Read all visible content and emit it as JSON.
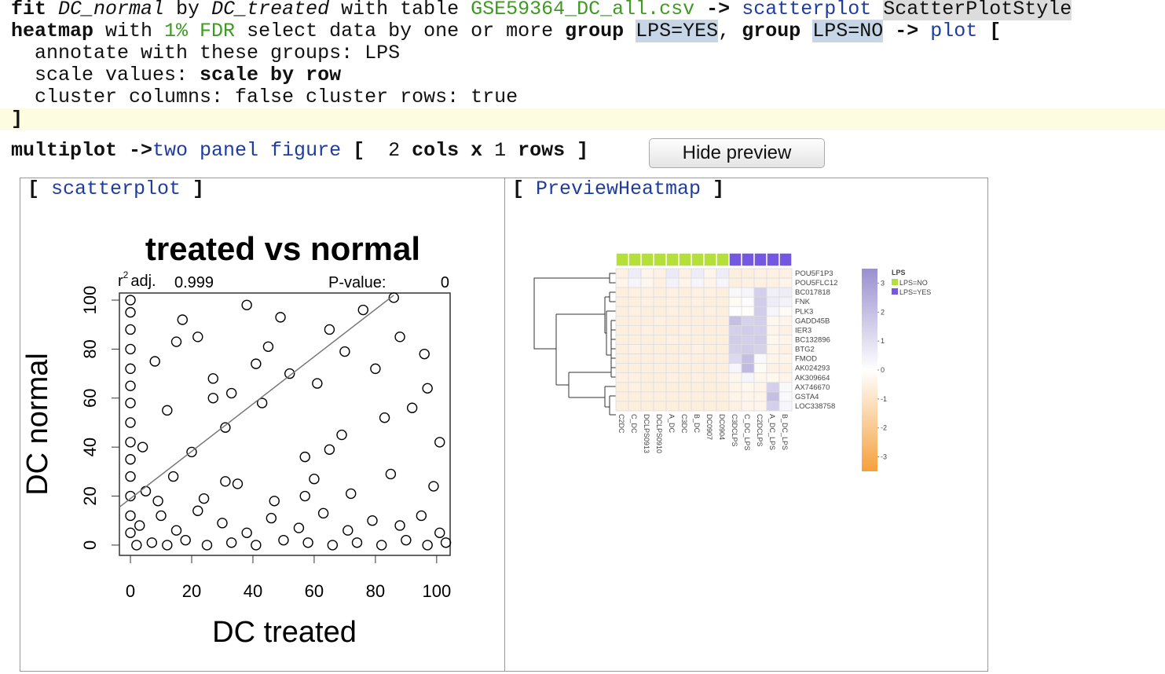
{
  "editor": {
    "lines": [
      {
        "tokens": [
          {
            "text": "fit ",
            "style": "kw"
          },
          {
            "text": "DC_normal",
            "style": "it"
          },
          {
            "text": " by ",
            "style": "plain"
          },
          {
            "text": "DC_treated",
            "style": "it"
          },
          {
            "text": " with table ",
            "style": "plain"
          },
          {
            "text": "GSE59364_DC_all.csv",
            "style": "str"
          },
          {
            "text": " -> ",
            "style": "kw"
          },
          {
            "text": "scatterplot ",
            "style": "ref"
          },
          {
            "text": "ScatterPlotStyle",
            "style": "hl"
          }
        ]
      },
      {
        "tokens": [
          {
            "text": "heatmap",
            "style": "kw"
          },
          {
            "text": " with ",
            "style": "plain"
          },
          {
            "text": "1% FDR",
            "style": "str"
          },
          {
            "text": " select data by one or more ",
            "style": "plain"
          },
          {
            "text": "group ",
            "style": "kw"
          },
          {
            "text": "LPS=YES",
            "style": "grp"
          },
          {
            "text": ", ",
            "style": "plain"
          },
          {
            "text": "group ",
            "style": "kw"
          },
          {
            "text": "LPS=NO",
            "style": "grp"
          },
          {
            "text": " -> ",
            "style": "kw"
          },
          {
            "text": "plot",
            "style": "ref"
          },
          {
            "text": " [",
            "style": "kw"
          }
        ]
      },
      {
        "tokens": [
          {
            "text": "  annotate with these groups: LPS",
            "style": "plain"
          }
        ]
      },
      {
        "tokens": [
          {
            "text": "  scale values: ",
            "style": "plain"
          },
          {
            "text": "scale by row",
            "style": "kw"
          }
        ]
      },
      {
        "tokens": [
          {
            "text": "  cluster columns: false cluster rows: true",
            "style": "plain"
          }
        ]
      },
      {
        "highlight": true,
        "tokens": [
          {
            "text": "]",
            "style": "kw"
          }
        ]
      },
      {
        "tokens": [
          {
            "text": "multiplot ->",
            "style": "kw"
          },
          {
            "text": "two panel figure",
            "style": "ref"
          },
          {
            "text": " [  ",
            "style": "kw"
          },
          {
            "text": "2",
            "style": "plain"
          },
          {
            "text": " cols x ",
            "style": "kw"
          },
          {
            "text": "1",
            "style": "plain"
          },
          {
            "text": " rows ]",
            "style": "kw"
          }
        ]
      }
    ]
  },
  "button": "Hide preview",
  "panels": [
    {
      "open": "[ ",
      "title": "scatterplot",
      "close": " ]"
    },
    {
      "open": "[ ",
      "title": "PreviewHeatmap",
      "close": " ]"
    }
  ],
  "chart_data": [
    {
      "type": "scatter",
      "title": "treated vs normal",
      "xlabel": "DC treated",
      "ylabel": "DC normal",
      "r2_label": "r",
      "r2_sup": "2",
      "r2_rest": "adj.",
      "r2_value": "0.999",
      "pvalue_label": "P-value:",
      "pvalue": 0,
      "xlim": [
        -3.6,
        104.4
      ],
      "ylim": [
        -4.2,
        102.9
      ],
      "xticks": [
        0,
        20,
        40,
        60,
        80,
        100
      ],
      "yticks": [
        0,
        20,
        40,
        60,
        80,
        100
      ],
      "color": "#000000",
      "fit_line": {
        "x": [
          -3.6,
          86
        ],
        "y": [
          15.5,
          102
        ]
      },
      "x": [
        0,
        0,
        0,
        0,
        0,
        0,
        0,
        0,
        0,
        0,
        0,
        0,
        0,
        0,
        2,
        7,
        12,
        18,
        25,
        33,
        41,
        50,
        58,
        66,
        74,
        82,
        90,
        97,
        103,
        3,
        10,
        15,
        22,
        30,
        38,
        46,
        55,
        63,
        71,
        79,
        88,
        95,
        101,
        5,
        14,
        24,
        35,
        47,
        60,
        72,
        85,
        99,
        9,
        31,
        57,
        4,
        12,
        20,
        31,
        43,
        57,
        69,
        83,
        101,
        27,
        65,
        92,
        8,
        17,
        27,
        38,
        45,
        52,
        65,
        76,
        80,
        88,
        96,
        33,
        61,
        22,
        49,
        70,
        97,
        15,
        41,
        86
      ],
      "y": [
        100,
        95,
        88,
        80,
        72,
        65,
        58,
        50,
        42,
        35,
        28,
        20,
        12,
        5,
        0,
        1,
        0,
        2,
        0,
        1,
        0,
        2,
        1,
        0,
        1,
        0,
        2,
        0,
        1,
        8,
        12,
        6,
        14,
        9,
        5,
        11,
        7,
        13,
        6,
        10,
        8,
        12,
        5,
        22,
        28,
        19,
        25,
        18,
        27,
        21,
        29,
        24,
        18,
        26,
        20,
        40,
        55,
        38,
        48,
        58,
        36,
        45,
        52,
        42,
        60,
        39,
        56,
        75,
        92,
        68,
        98,
        81,
        70,
        88,
        96,
        72,
        85,
        78,
        62,
        66,
        85,
        93,
        79,
        64,
        83,
        74,
        101
      ]
    },
    {
      "type": "heatmap",
      "columns": [
        "C2DC",
        "C_DC",
        "DCLPS0913",
        "DCLPS0910",
        "A_DC",
        "C3DC",
        "B_DC",
        "DC0907",
        "DC0904",
        "C3DCLPS",
        "C_DC_LPS",
        "C2DCLPS",
        "A_DC_LPS",
        "B_DC_LPS"
      ],
      "rows": [
        "POU5F1P3",
        "POU5FLC12",
        "BC017818",
        "FNK",
        "PLK3",
        "GADD45B",
        "IER3",
        "BC132896",
        "BTG2",
        "FMOD",
        "AK024293",
        "AK309664",
        "AX746670",
        "GSTA4",
        "LOC338758"
      ],
      "annotation_name": "LPS",
      "annotation_levels": [
        "LPS=NO",
        "LPS=YES"
      ],
      "annotation_colors": [
        "#b5e03a",
        "#7558e2"
      ],
      "column_groups": [
        "LPS=NO",
        "LPS=NO",
        "LPS=NO",
        "LPS=NO",
        "LPS=NO",
        "LPS=NO",
        "LPS=NO",
        "LPS=NO",
        "LPS=NO",
        "LPS=YES",
        "LPS=YES",
        "LPS=YES",
        "LPS=YES",
        "LPS=YES"
      ],
      "clim": [
        -3.5,
        3.5
      ],
      "colors": [
        "#f5a03c",
        "#ffffff",
        "#9a8fd0"
      ],
      "colorbar_ticks": [
        3,
        2,
        1,
        0,
        -1,
        -2,
        -3
      ],
      "z": [
        [
          -0.5,
          0.6,
          -0.4,
          -0.5,
          0.7,
          -0.5,
          0.6,
          -0.4,
          0.6,
          -0.6,
          -0.6,
          -0.5,
          -0.5,
          -0.5
        ],
        [
          -0.4,
          0.3,
          -0.3,
          -0.5,
          0.4,
          -0.4,
          0.3,
          -0.4,
          0.3,
          -0.6,
          -0.5,
          -0.5,
          -0.5,
          -0.4
        ],
        [
          -0.6,
          -0.5,
          -0.5,
          -0.6,
          -0.5,
          -0.6,
          -0.5,
          -0.5,
          -0.6,
          0.2,
          0.3,
          1.5,
          0.5,
          0.6
        ],
        [
          -0.6,
          -0.6,
          -0.5,
          -0.6,
          -0.5,
          -0.6,
          -0.5,
          -0.6,
          -0.6,
          -0.2,
          0.1,
          1.6,
          0.6,
          0.4
        ],
        [
          -0.6,
          -0.5,
          -0.6,
          -0.6,
          -0.5,
          -0.6,
          -0.6,
          -0.5,
          -0.6,
          0,
          -0.1,
          1.6,
          0.3,
          -0.2
        ],
        [
          -0.6,
          -0.6,
          -0.6,
          -0.5,
          -0.6,
          -0.6,
          -0.6,
          -0.6,
          -0.6,
          2,
          1.4,
          1.5,
          -0.3,
          -0.4
        ],
        [
          -0.6,
          -0.6,
          -0.5,
          -0.6,
          -0.6,
          -0.5,
          -0.6,
          -0.6,
          -0.6,
          1.5,
          1.6,
          1.5,
          -0.4,
          -0.5
        ],
        [
          -0.6,
          -0.6,
          -0.6,
          -0.6,
          -0.5,
          -0.6,
          -0.6,
          -0.6,
          -0.6,
          1.6,
          1.5,
          1.6,
          -0.3,
          -0.4
        ],
        [
          -0.6,
          -0.5,
          -0.6,
          -0.6,
          -0.6,
          -0.6,
          -0.5,
          -0.6,
          -0.6,
          1.5,
          1.6,
          1.4,
          -0.4,
          -0.5
        ],
        [
          -0.6,
          -0.6,
          -0.6,
          -0.6,
          -0.6,
          -0.5,
          -0.6,
          -0.6,
          -0.6,
          1.2,
          2.0,
          0.2,
          -0.4,
          -0.4
        ],
        [
          -0.6,
          -0.6,
          -0.6,
          -0.6,
          -0.6,
          -0.6,
          -0.6,
          -0.6,
          -0.6,
          0.3,
          2.2,
          -0.2,
          -0.5,
          -0.5
        ],
        [
          -0.5,
          -0.5,
          -0.6,
          -0.6,
          -0.5,
          -0.6,
          -0.5,
          -0.6,
          -0.5,
          -0.3,
          0.3,
          -0.3,
          -0.3,
          -0.4
        ],
        [
          -0.6,
          -0.5,
          -0.6,
          -0.6,
          -0.6,
          -0.6,
          -0.6,
          -0.6,
          -0.6,
          -0.4,
          -0.3,
          -0.4,
          1.5,
          0.2
        ],
        [
          -0.6,
          -0.6,
          -0.6,
          -0.6,
          -0.6,
          -0.6,
          -0.6,
          -0.6,
          -0.6,
          -0.4,
          -0.4,
          -0.4,
          2.0,
          0.2
        ],
        [
          -0.6,
          -0.6,
          -0.6,
          -0.6,
          -0.6,
          -0.6,
          -0.6,
          -0.6,
          -0.6,
          -0.5,
          -0.4,
          -0.4,
          1.5,
          0.3
        ]
      ]
    }
  ]
}
